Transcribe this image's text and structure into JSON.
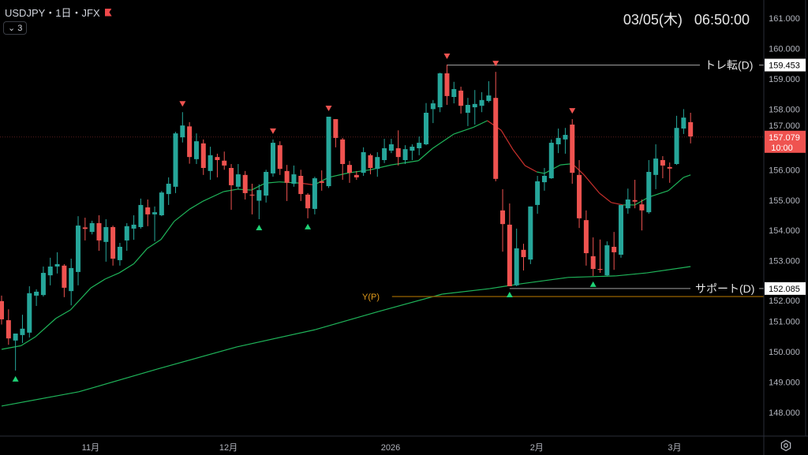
{
  "header": {
    "symbol_line": "USDJPY・1日・JFX",
    "indicator_toggle": "3",
    "flag_color": "#f0484a"
  },
  "clock": "03/05(木)   06:50:00",
  "colors": {
    "up": "#26a69a",
    "down": "#ef5350",
    "ma_up": "#1fb55a",
    "ma_down": "#c9302c",
    "yp_line": "#8a5a00",
    "yp_label": "#e09a1a",
    "level_line": "#9e9e9e"
  },
  "chart_data": {
    "type": "candlestick",
    "title": "USDJPY・1日・JFX",
    "ylim": [
      147.8,
      161.6
    ],
    "y_ticks": [
      "148.000",
      "149.000",
      "150.000",
      "151.000",
      "152.000",
      "153.000",
      "154.000",
      "155.000",
      "156.000",
      "157.000",
      "158.000",
      "159.000",
      "160.000",
      "161.000"
    ],
    "x_ticks": [
      {
        "label": "11月",
        "index": 12.8
      },
      {
        "label": "12月",
        "index": 32.6
      },
      {
        "label": "2026",
        "index": 55.9
      },
      {
        "label": "2月",
        "index": 76.9
      },
      {
        "label": "3月",
        "index": 96.7
      }
    ],
    "candles_ohlc": [
      [
        151.67,
        151.85,
        150.9,
        151.07
      ],
      [
        151.04,
        151.4,
        150.23,
        150.44
      ],
      [
        150.37,
        150.6,
        149.38,
        150.6
      ],
      [
        150.55,
        151.22,
        150.29,
        150.76
      ],
      [
        150.63,
        152.16,
        150.47,
        151.93
      ],
      [
        151.85,
        152.06,
        151.51,
        151.98
      ],
      [
        151.87,
        152.81,
        151.82,
        152.6
      ],
      [
        152.52,
        153.1,
        152.19,
        152.81
      ],
      [
        152.81,
        153.28,
        152.58,
        152.89
      ],
      [
        152.84,
        152.89,
        151.8,
        152.11
      ],
      [
        152.0,
        153.07,
        151.53,
        152.76
      ],
      [
        152.63,
        154.47,
        152.19,
        154.16
      ],
      [
        154.1,
        154.42,
        153.67,
        154.05
      ],
      [
        153.95,
        154.32,
        153.87,
        154.24
      ],
      [
        154.24,
        154.5,
        153.33,
        153.67
      ],
      [
        153.62,
        154.37,
        152.97,
        154.11
      ],
      [
        154.11,
        154.16,
        152.84,
        153.07
      ],
      [
        153.02,
        153.59,
        152.84,
        153.46
      ],
      [
        153.67,
        154.24,
        153.33,
        154.14
      ],
      [
        154.06,
        154.5,
        153.69,
        154.19
      ],
      [
        154.11,
        155.05,
        154.06,
        154.84
      ],
      [
        154.76,
        155.02,
        154.14,
        154.53
      ],
      [
        154.53,
        154.79,
        153.64,
        154.6
      ],
      [
        154.5,
        155.3,
        154.47,
        155.25
      ],
      [
        155.2,
        155.75,
        154.84,
        155.54
      ],
      [
        155.44,
        157.25,
        155.23,
        157.2
      ],
      [
        157.07,
        157.9,
        156.9,
        157.46
      ],
      [
        157.43,
        157.57,
        156.2,
        156.42
      ],
      [
        156.35,
        157.2,
        156.19,
        156.94
      ],
      [
        156.87,
        157.0,
        155.83,
        156.06
      ],
      [
        155.96,
        156.76,
        155.67,
        156.48
      ],
      [
        156.42,
        156.53,
        155.75,
        156.32
      ],
      [
        156.3,
        156.6,
        156.0,
        156.14
      ],
      [
        156.06,
        156.19,
        154.68,
        155.49
      ],
      [
        155.44,
        156.19,
        155.36,
        155.85
      ],
      [
        155.83,
        155.96,
        155.02,
        155.23
      ],
      [
        155.18,
        155.54,
        154.53,
        155.15
      ],
      [
        154.98,
        155.52,
        154.37,
        155.33
      ],
      [
        155.15,
        156.0,
        154.92,
        155.93
      ],
      [
        155.88,
        157.0,
        155.77,
        156.89
      ],
      [
        156.81,
        156.94,
        155.83,
        156.03
      ],
      [
        155.96,
        156.16,
        154.97,
        155.57
      ],
      [
        155.54,
        156.14,
        155.44,
        155.85
      ],
      [
        155.8,
        156.0,
        154.97,
        155.2
      ],
      [
        155.18,
        155.23,
        154.4,
        154.73
      ],
      [
        154.71,
        155.77,
        154.53,
        155.72
      ],
      [
        155.62,
        155.98,
        155.31,
        155.57
      ],
      [
        155.46,
        157.75,
        155.4,
        157.75
      ],
      [
        157.67,
        157.67,
        156.74,
        157.05
      ],
      [
        157.0,
        157.05,
        155.67,
        156.19
      ],
      [
        156.16,
        156.29,
        155.57,
        155.9
      ],
      [
        155.83,
        155.96,
        155.67,
        155.75
      ],
      [
        155.9,
        156.74,
        155.8,
        156.58
      ],
      [
        156.48,
        156.53,
        155.85,
        156.06
      ],
      [
        156.03,
        156.58,
        155.77,
        156.42
      ],
      [
        156.32,
        157.02,
        156.22,
        156.71
      ],
      [
        156.63,
        157.02,
        156.55,
        156.84
      ],
      [
        156.71,
        157.3,
        156.14,
        156.42
      ],
      [
        156.32,
        156.81,
        156.19,
        156.68
      ],
      [
        156.63,
        156.84,
        156.32,
        156.76
      ],
      [
        156.71,
        157.1,
        156.48,
        156.89
      ],
      [
        156.84,
        158.2,
        156.81,
        157.88
      ],
      [
        158.0,
        158.3,
        157.54,
        158.19
      ],
      [
        158.06,
        159.2,
        157.9,
        159.18
      ],
      [
        159.18,
        159.47,
        158.14,
        158.43
      ],
      [
        158.4,
        158.9,
        158.19,
        158.66
      ],
      [
        158.61,
        158.74,
        157.85,
        158.11
      ],
      [
        157.88,
        158.37,
        157.44,
        158.14
      ],
      [
        158.06,
        158.63,
        157.49,
        158.17
      ],
      [
        158.11,
        158.56,
        157.9,
        158.3
      ],
      [
        158.27,
        158.92,
        158.22,
        158.45
      ],
      [
        158.37,
        159.23,
        155.62,
        155.7
      ],
      [
        154.66,
        155.36,
        153.3,
        154.21
      ],
      [
        154.19,
        154.89,
        152.16,
        152.16
      ],
      [
        152.19,
        154.06,
        152.16,
        153.41
      ],
      [
        153.36,
        153.56,
        152.68,
        153.12
      ],
      [
        153.04,
        154.79,
        152.89,
        154.79
      ],
      [
        154.84,
        155.8,
        154.55,
        155.62
      ],
      [
        155.59,
        156.06,
        155.31,
        155.8
      ],
      [
        155.72,
        157.0,
        155.7,
        156.89
      ],
      [
        156.84,
        157.36,
        156.55,
        157.05
      ],
      [
        157.0,
        157.38,
        156.53,
        157.15
      ],
      [
        157.49,
        157.67,
        155.54,
        155.9
      ],
      [
        155.83,
        156.32,
        154.08,
        154.4
      ],
      [
        154.34,
        154.66,
        152.84,
        153.25
      ],
      [
        153.15,
        153.77,
        152.5,
        152.73
      ],
      [
        152.73,
        153.7,
        152.6,
        152.7
      ],
      [
        152.52,
        153.64,
        152.5,
        153.51
      ],
      [
        153.46,
        153.95,
        152.7,
        153.28
      ],
      [
        153.2,
        154.84,
        153.1,
        154.84
      ],
      [
        154.73,
        155.38,
        154.55,
        155.02
      ],
      [
        155.0,
        155.67,
        154.73,
        154.95
      ],
      [
        154.86,
        155.02,
        154.0,
        154.66
      ],
      [
        154.6,
        156.32,
        154.55,
        155.93
      ],
      [
        155.83,
        156.84,
        155.36,
        156.37
      ],
      [
        156.32,
        156.45,
        155.72,
        156.14
      ],
      [
        156.09,
        156.24,
        155.57,
        156.04
      ],
      [
        156.19,
        157.78,
        156.16,
        157.38
      ],
      [
        157.36,
        158.0,
        157.18,
        157.72
      ],
      [
        157.57,
        157.88,
        156.87,
        157.1
      ]
    ],
    "short_ma": [
      [
        0,
        150.08
      ],
      [
        2.8,
        150.2
      ],
      [
        4.9,
        150.5
      ],
      [
        7.8,
        151.1
      ],
      [
        9.9,
        151.38
      ],
      [
        12.8,
        152.1
      ],
      [
        14.9,
        152.4
      ],
      [
        16.9,
        152.6
      ],
      [
        19,
        152.9
      ],
      [
        20.9,
        153.4
      ],
      [
        22.9,
        153.7
      ],
      [
        24.8,
        154.3
      ],
      [
        27,
        154.7
      ],
      [
        28.9,
        154.96
      ],
      [
        31.9,
        155.28
      ],
      [
        33.9,
        155.36
      ],
      [
        35.9,
        155.33
      ],
      [
        37.9,
        155.56
      ],
      [
        39.9,
        155.6
      ],
      [
        43,
        155.56
      ],
      [
        44.9,
        155.5
      ],
      [
        47,
        155.75
      ],
      [
        49.9,
        155.9
      ],
      [
        53,
        156.0
      ],
      [
        56,
        156.16
      ],
      [
        59.9,
        156.3
      ],
      [
        61.9,
        156.7
      ],
      [
        65,
        157.18
      ],
      [
        67.8,
        157.4
      ],
      [
        69.8,
        157.62
      ],
      [
        71.8,
        157.3
      ],
      [
        73.5,
        156.66
      ],
      [
        75.2,
        156.14
      ],
      [
        76.9,
        155.93
      ],
      [
        78,
        155.88
      ],
      [
        80.3,
        156.16
      ],
      [
        82,
        156.2
      ],
      [
        83.7,
        155.83
      ],
      [
        85.9,
        155.23
      ],
      [
        87.6,
        154.92
      ],
      [
        89.3,
        154.84
      ],
      [
        91,
        154.84
      ],
      [
        93,
        155.1
      ],
      [
        95.8,
        155.31
      ],
      [
        98,
        155.75
      ],
      [
        99,
        155.83
      ]
    ],
    "long_ma": [
      [
        0,
        148.21
      ],
      [
        11.1,
        148.68
      ],
      [
        22.4,
        149.43
      ],
      [
        33.8,
        150.16
      ],
      [
        45.1,
        150.73
      ],
      [
        54.2,
        151.33
      ],
      [
        63.3,
        151.9
      ],
      [
        70.1,
        152.08
      ],
      [
        74.6,
        152.24
      ],
      [
        81.4,
        152.45
      ],
      [
        88.2,
        152.5
      ],
      [
        92.7,
        152.6
      ],
      [
        99,
        152.81
      ]
    ],
    "signals_down": [
      26,
      39,
      47,
      64,
      71,
      82
    ],
    "signals_up": [
      2,
      37,
      44,
      73,
      85
    ],
    "levels": [
      {
        "label": "トレ転(D)",
        "value": "159.453",
        "price": 159.453,
        "from_index": 64
      },
      {
        "label": "サポート(D)",
        "value": "152.085",
        "price": 152.085,
        "from_index": 73
      }
    ],
    "pivot": {
      "label": "Y(P)",
      "price": 151.82,
      "from_index": 56.1
    },
    "last_price": {
      "value": "157.079",
      "price": 157.079,
      "countdown": "10:00"
    }
  }
}
